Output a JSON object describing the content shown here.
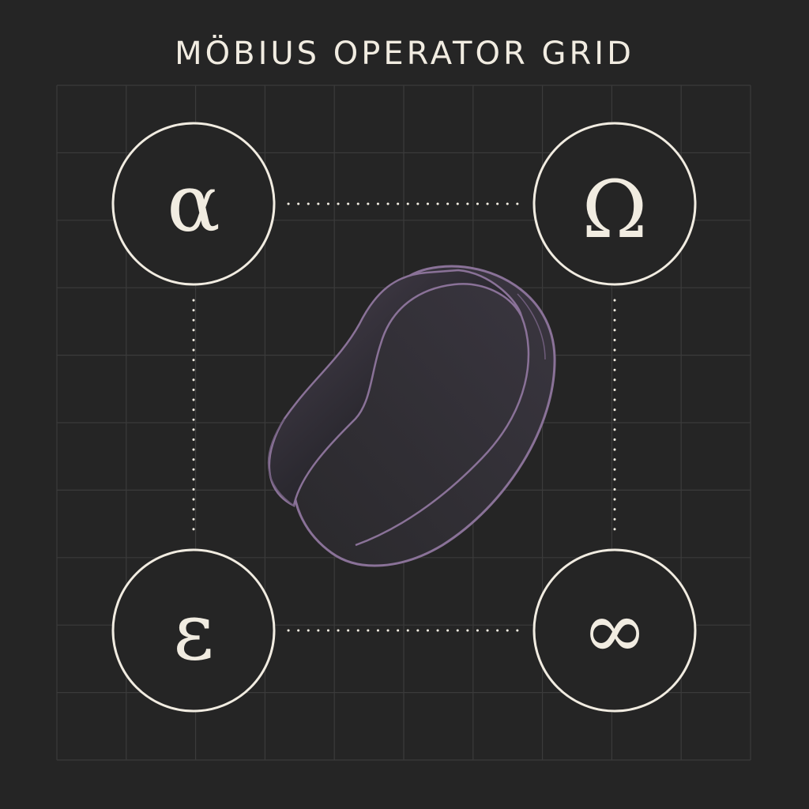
{
  "title": "MÖBIUS OPERATOR GRID",
  "nodes": [
    {
      "id": "alpha",
      "symbol": "α",
      "icon": "alpha-glyph"
    },
    {
      "id": "omega",
      "symbol": "Ω",
      "icon": "omega-glyph"
    },
    {
      "id": "epsilon",
      "symbol": "ε",
      "icon": "epsilon-glyph"
    },
    {
      "id": "infinity",
      "symbol": "∞",
      "icon": "infinity-glyph"
    }
  ],
  "center": {
    "icon": "mobius-strip-icon"
  },
  "colors": {
    "background": "#252525",
    "grid": "#3b3b3b",
    "ink": "#f1ece1",
    "mobius_edge": "#8a7298",
    "mobius_fill_dark": "#1d1c20",
    "mobius_fill_mid": "#3a3640",
    "mobius_fill_light": "#4a4250"
  }
}
